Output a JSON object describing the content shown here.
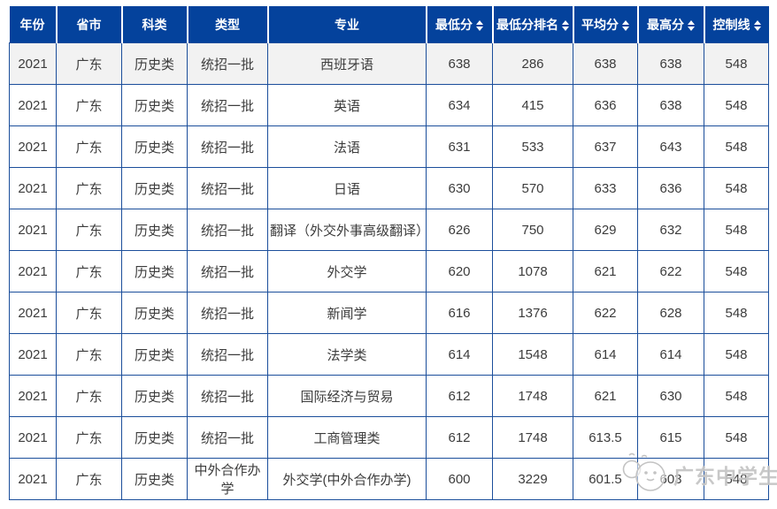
{
  "table": {
    "columns": [
      {
        "label": "年份",
        "sortable": false
      },
      {
        "label": "省市",
        "sortable": false
      },
      {
        "label": "科类",
        "sortable": false
      },
      {
        "label": "类型",
        "sortable": false
      },
      {
        "label": "专业",
        "sortable": false
      },
      {
        "label": "最低分",
        "sortable": true
      },
      {
        "label": "最低分排名",
        "sortable": true
      },
      {
        "label": "平均分",
        "sortable": true
      },
      {
        "label": "最高分",
        "sortable": true
      },
      {
        "label": "控制线",
        "sortable": true
      }
    ],
    "rows": [
      [
        "2021",
        "广东",
        "历史类",
        "统招一批",
        "西班牙语",
        "638",
        "286",
        "638",
        "638",
        "548"
      ],
      [
        "2021",
        "广东",
        "历史类",
        "统招一批",
        "英语",
        "634",
        "415",
        "636",
        "638",
        "548"
      ],
      [
        "2021",
        "广东",
        "历史类",
        "统招一批",
        "法语",
        "631",
        "533",
        "637",
        "643",
        "548"
      ],
      [
        "2021",
        "广东",
        "历史类",
        "统招一批",
        "日语",
        "630",
        "570",
        "633",
        "636",
        "548"
      ],
      [
        "2021",
        "广东",
        "历史类",
        "统招一批",
        "翻译（外交外事高级翻译）",
        "626",
        "750",
        "629",
        "632",
        "548"
      ],
      [
        "2021",
        "广东",
        "历史类",
        "统招一批",
        "外交学",
        "620",
        "1078",
        "621",
        "622",
        "548"
      ],
      [
        "2021",
        "广东",
        "历史类",
        "统招一批",
        "新闻学",
        "616",
        "1376",
        "622",
        "628",
        "548"
      ],
      [
        "2021",
        "广东",
        "历史类",
        "统招一批",
        "法学类",
        "614",
        "1548",
        "614",
        "614",
        "548"
      ],
      [
        "2021",
        "广东",
        "历史类",
        "统招一批",
        "国际经济与贸易",
        "612",
        "1748",
        "621",
        "630",
        "548"
      ],
      [
        "2021",
        "广东",
        "历史类",
        "统招一批",
        "工商管理类",
        "612",
        "1748",
        "613.5",
        "615",
        "548"
      ],
      [
        "2021",
        "广东",
        "历史类",
        "中外合作办学",
        "外交学(中外合作办学)",
        "600",
        "3229",
        "601.5",
        "603",
        "548"
      ]
    ],
    "highlighted_row_index": 0
  },
  "watermark": {
    "text": "广东中学生",
    "icon": "mascot-icon"
  },
  "colors": {
    "header_bg": "#04429c",
    "header_text": "#ffffff",
    "border": "#1b4e9b",
    "row_highlight": "#f2f2f2",
    "body_text": "#3c3c3c",
    "watermark": "#bebebe"
  }
}
